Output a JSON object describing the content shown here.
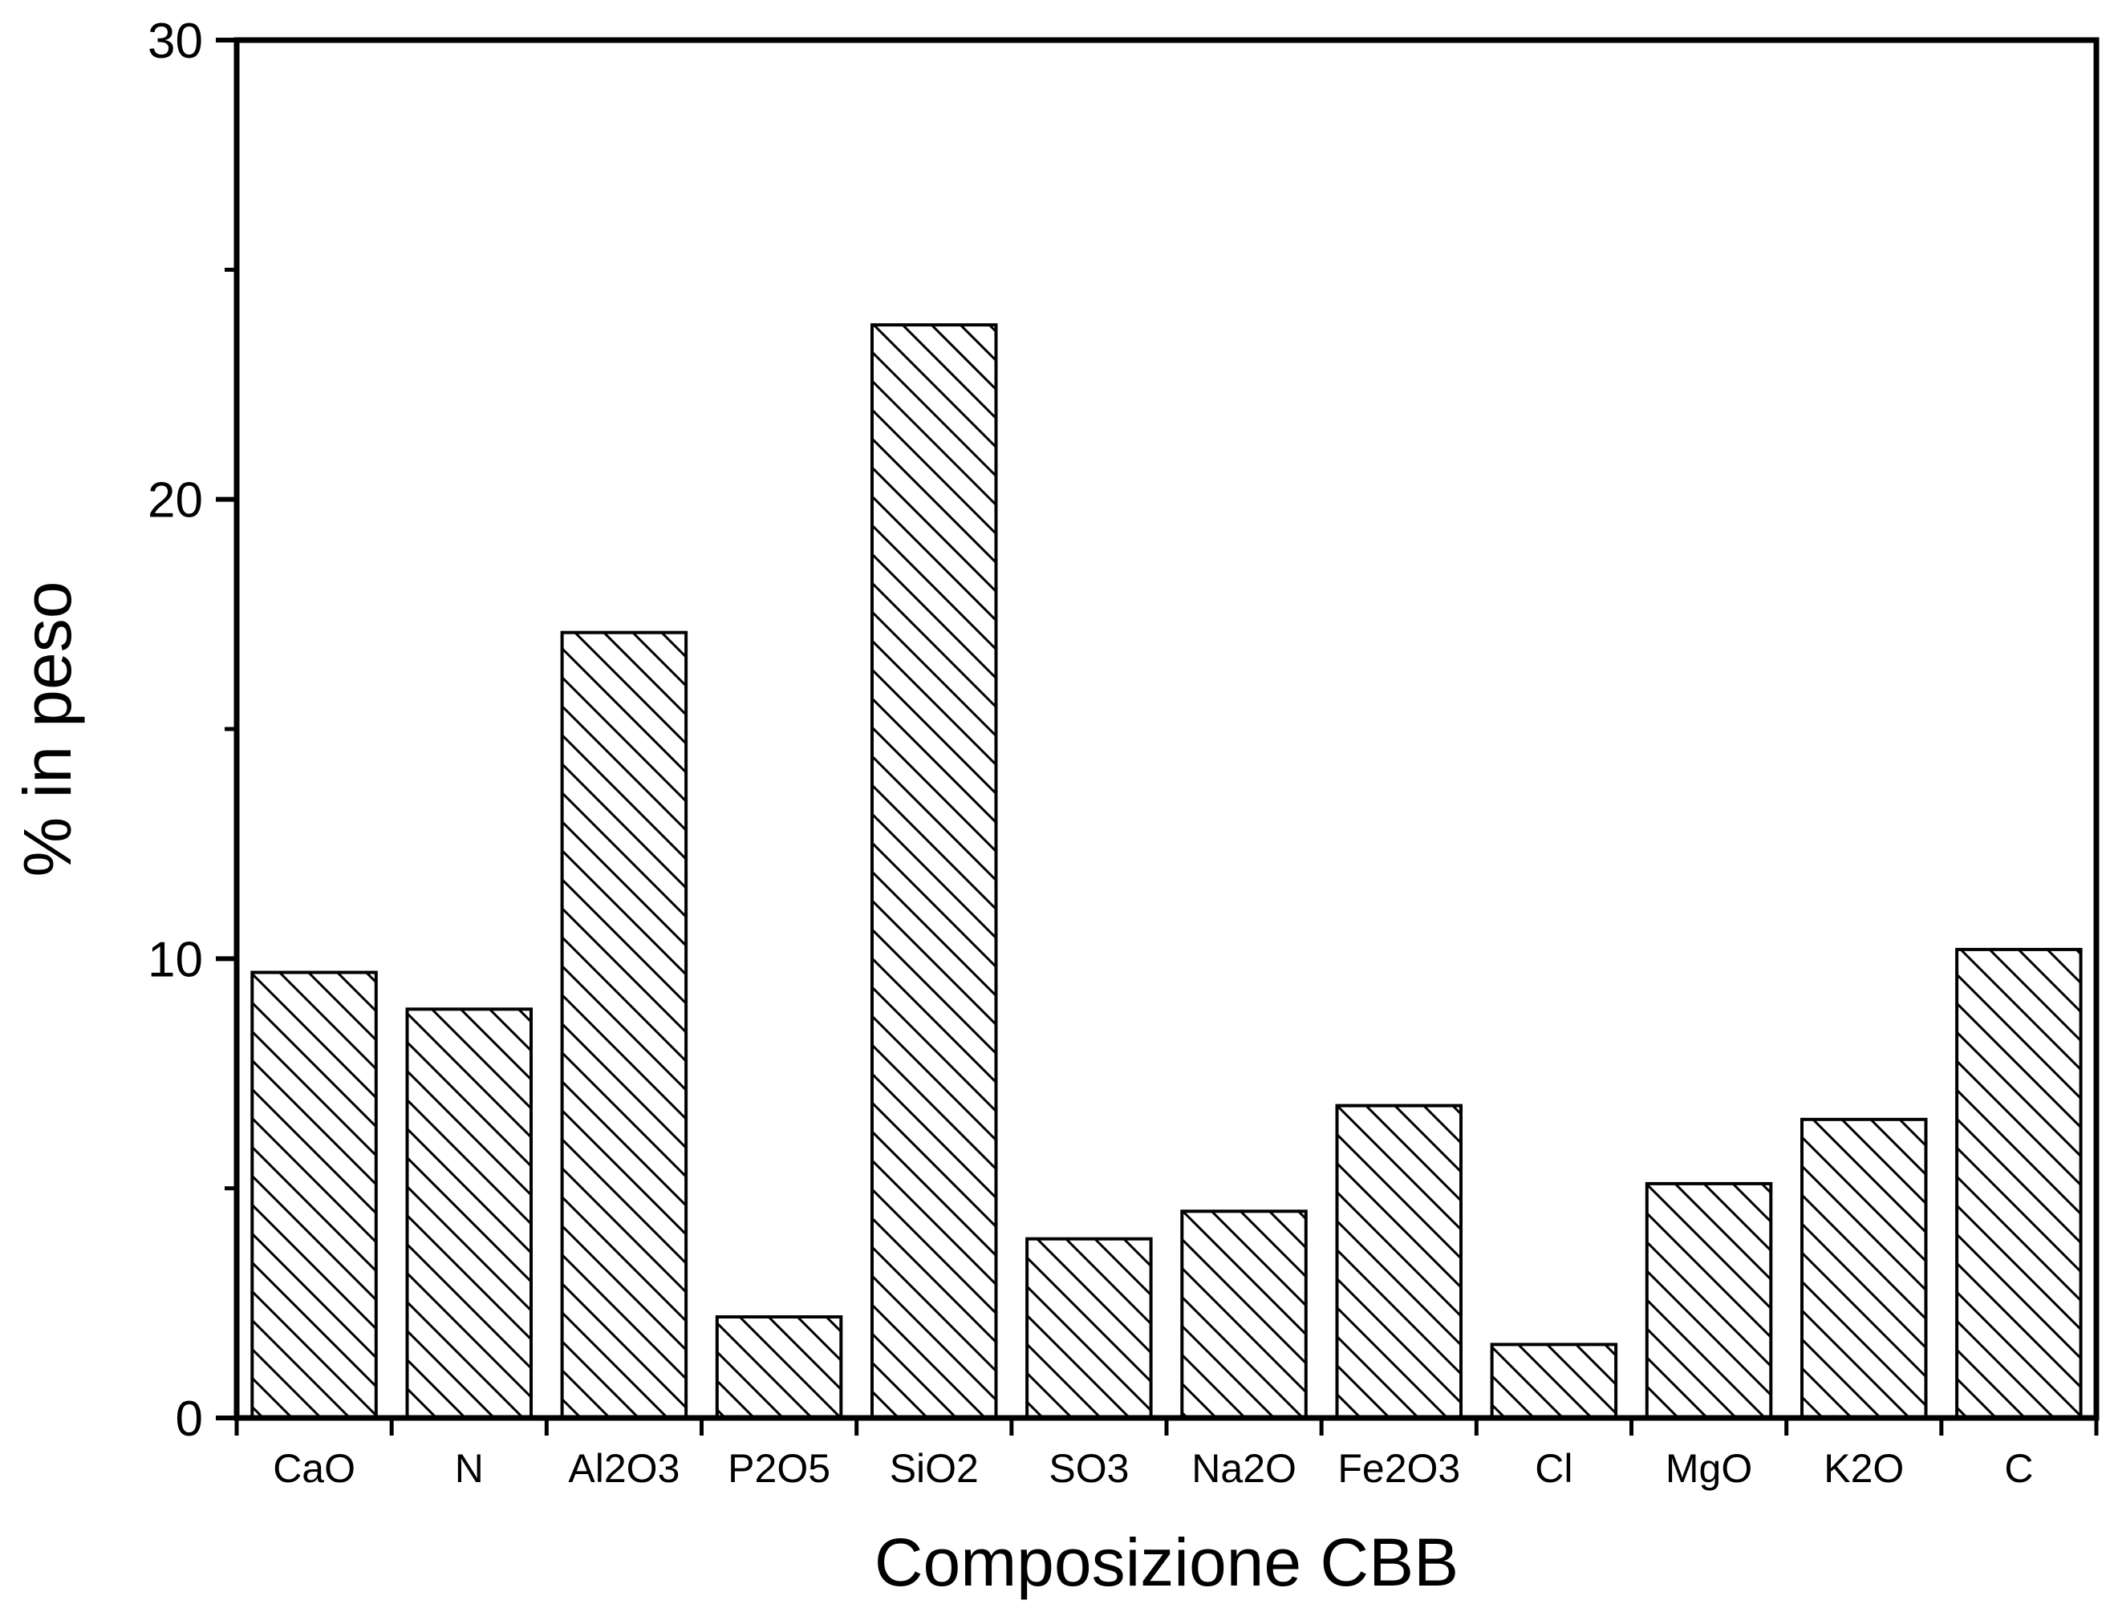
{
  "chart_data": {
    "type": "bar",
    "title": "",
    "xlabel": "Composizione CBB",
    "ylabel": "% in peso",
    "ylim": [
      0,
      30
    ],
    "yticks": [
      0,
      10,
      20,
      30
    ],
    "ytick_labels": [
      "0",
      "10",
      "20",
      "30"
    ],
    "yminor_ticks": [
      5,
      15,
      25
    ],
    "grid": false,
    "bar_pattern": "diagonal-hatch",
    "bar_fill": "#ffffff",
    "bar_stroke": "#000000",
    "categories": [
      "CaO",
      "N",
      "Al2O3",
      "P2O5",
      "SiO2",
      "SO3",
      "Na2O",
      "Fe2O3",
      "Cl",
      "MgO",
      "K2O",
      "C"
    ],
    "values": [
      9.7,
      8.9,
      17.1,
      2.2,
      23.8,
      3.9,
      4.5,
      6.8,
      1.6,
      5.1,
      6.5,
      10.2
    ]
  }
}
